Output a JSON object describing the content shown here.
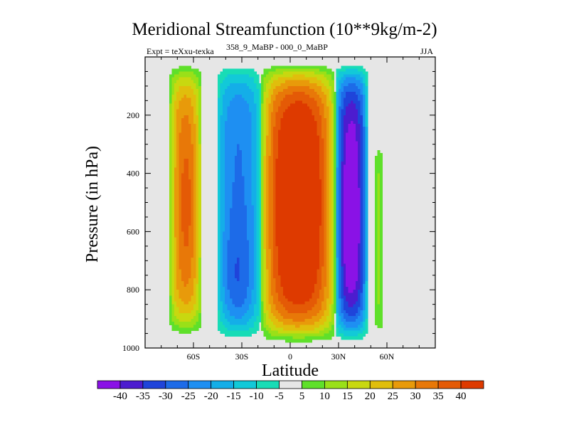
{
  "chart_data": {
    "type": "heatmap",
    "title": "Meridional Streamfunction (10**9kg/m-2)",
    "left_subtitle": "Expt = teXxu-texka",
    "center_subtitle": "358_9_MaBP - 000_0_MaBP",
    "right_subtitle": "JJA",
    "xlabel": "Latitude",
    "ylabel": "Pressure (in hPa)",
    "xlim": [
      -90,
      90
    ],
    "ylim": [
      0,
      1000
    ],
    "y_inverted": true,
    "x_ticks": [
      {
        "value": -60,
        "label": "60S"
      },
      {
        "value": -30,
        "label": "30S"
      },
      {
        "value": 0,
        "label": "0"
      },
      {
        "value": 30,
        "label": "30N"
      },
      {
        "value": 60,
        "label": "60N"
      }
    ],
    "y_ticks": [
      {
        "value": 200,
        "label": "200"
      },
      {
        "value": 400,
        "label": "400"
      },
      {
        "value": 600,
        "label": "600"
      },
      {
        "value": 800,
        "label": "800"
      },
      {
        "value": 1000,
        "label": "1000"
      }
    ],
    "colorbar": {
      "levels": [
        -40,
        -35,
        -30,
        -25,
        -20,
        -15,
        -10,
        -5,
        5,
        10,
        15,
        20,
        25,
        30,
        35,
        40
      ],
      "labels": [
        "-40",
        "-35",
        "-30",
        "-25",
        "-20",
        "-15",
        "-10",
        "-5",
        "5",
        "10",
        "15",
        "20",
        "25",
        "30",
        "35",
        "40"
      ],
      "colors": [
        "#8a12e6",
        "#4c1ccf",
        "#1f44da",
        "#1d6be8",
        "#1e8ff2",
        "#14aee8",
        "#12c9d8",
        "#18dcb6",
        "#e6e6e6",
        "#5fe02a",
        "#9ae018",
        "#c8d810",
        "#e0be0c",
        "#e89a0a",
        "#e87808",
        "#e45a06",
        "#de3a00"
      ]
    },
    "background_color": "#e6e6e6",
    "fields": [
      {
        "name": "southern-mid-lat-positive-cell",
        "lat_range": [
          -75,
          -55
        ],
        "p_range": [
          20,
          960
        ],
        "peak_value": 30,
        "peak_lat": -64,
        "peak_p": 500
      },
      {
        "name": "southern-subtropical-negative-cell",
        "lat_range": [
          -46,
          -18
        ],
        "p_range": [
          20,
          975
        ],
        "peak_value": -25,
        "peak_lat": -33,
        "peak_p": 800
      },
      {
        "name": "tropical-positive-cell",
        "lat_range": [
          -18,
          28
        ],
        "p_range": [
          20,
          985
        ],
        "peak_value": 45,
        "peak_lat": 5,
        "peak_p": 500
      },
      {
        "name": "northern-subtropical-negative-cell",
        "lat_range": [
          28,
          48
        ],
        "p_range": [
          20,
          980
        ],
        "peak_value": -40,
        "peak_lat": 38,
        "peak_p": 550
      },
      {
        "name": "northern-high-lat-positive-cell",
        "lat_range": [
          52,
          58
        ],
        "p_range": [
          290,
          970
        ],
        "peak_value": 10,
        "peak_lat": 54,
        "peak_p": 600
      }
    ]
  }
}
